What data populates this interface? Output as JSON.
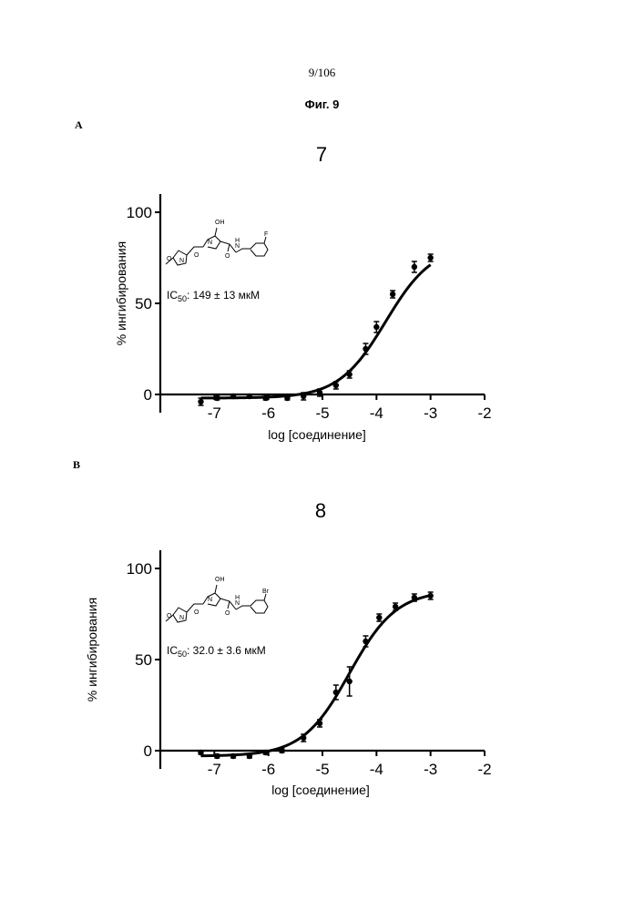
{
  "page": {
    "page_number": "9/106",
    "figure_title": "Фиг. 9"
  },
  "chart_data": [
    {
      "type": "scatter",
      "panel_label": "A",
      "title": "7",
      "xlabel": "log [соединение]",
      "ylabel": "% ингибирования",
      "xlim": [
        -8,
        -2
      ],
      "ylim": [
        -15,
        110
      ],
      "x_ticks": [
        -7,
        -6,
        -5,
        -4,
        -3,
        -2
      ],
      "x_tick_labels": [
        "-7",
        "-6",
        "-5",
        "-4",
        "-3",
        "-2"
      ],
      "y_ticks": [
        0,
        50,
        100
      ],
      "y_tick_labels": [
        "0",
        "50",
        "100"
      ],
      "annotation": {
        "ic50_label": "IC",
        "ic50_sub": "50",
        "ic50_value": ": 149 ± 13 мкМ",
        "struct_atoms": {
          "oh": "OH",
          "f": "F",
          "n_ring": "N",
          "o_ring": "O",
          "n_iso": "N",
          "o_carbonyl": "O",
          "o_amide": "O",
          "nh": "H",
          "n_amide": "N"
        }
      },
      "series": [
        {
          "name": "data",
          "x": [
            -7.25,
            -6.95,
            -6.65,
            -6.35,
            -6.05,
            -5.65,
            -5.35,
            -5.05,
            -4.75,
            -4.5,
            -4.2,
            -4.0,
            -3.7,
            -3.3,
            -3.0
          ],
          "y": [
            -4,
            -2,
            -1,
            -1,
            -2,
            -2,
            -1,
            1,
            5,
            11,
            25,
            37,
            55,
            70,
            75
          ],
          "err": [
            2,
            1,
            1,
            1,
            1,
            1,
            2,
            2,
            2,
            2,
            3,
            3,
            2,
            3,
            2
          ]
        }
      ],
      "fit": {
        "bottom": -2,
        "top": 82,
        "log_ic50": -3.83,
        "hill": 1.0,
        "x_start": -7.25,
        "x_end": -3.0
      }
    },
    {
      "type": "scatter",
      "panel_label": "B",
      "title": "8",
      "xlabel": "log [соединение]",
      "ylabel": "% ингибирования",
      "xlim": [
        -8,
        -2
      ],
      "ylim": [
        -15,
        110
      ],
      "x_ticks": [
        -7,
        -6,
        -5,
        -4,
        -3,
        -2
      ],
      "x_tick_labels": [
        "-7",
        "-6",
        "-5",
        "-4",
        "-3",
        "-2"
      ],
      "y_ticks": [
        0,
        50,
        100
      ],
      "y_tick_labels": [
        "0",
        "50",
        "100"
      ],
      "annotation": {
        "ic50_label": "IC",
        "ic50_sub": "50",
        "ic50_value": ": 32.0 ± 3.6 мкМ",
        "struct_atoms": {
          "oh": "OH",
          "br": "Br",
          "n_ring": "N",
          "o_ring": "O",
          "n_iso": "N",
          "o_carbonyl": "O",
          "o_amide": "O",
          "nh": "H",
          "n_amide": "N"
        }
      },
      "series": [
        {
          "name": "data",
          "x": [
            -7.25,
            -6.95,
            -6.65,
            -6.35,
            -6.05,
            -5.75,
            -5.35,
            -5.05,
            -4.75,
            -4.5,
            -4.2,
            -3.95,
            -3.65,
            -3.3,
            -3.0
          ],
          "y": [
            -1,
            -3,
            -3,
            -3,
            -1,
            0,
            7,
            15,
            32,
            38,
            60,
            73,
            79,
            84,
            85
          ],
          "err": [
            1,
            1,
            1,
            1,
            1,
            1,
            2,
            2,
            4,
            8,
            3,
            2,
            2,
            2,
            2
          ]
        }
      ],
      "fit": {
        "bottom": -3,
        "top": 88,
        "log_ic50": -4.5,
        "hill": 1.0,
        "x_start": -7.25,
        "x_end": -3.0
      }
    }
  ]
}
